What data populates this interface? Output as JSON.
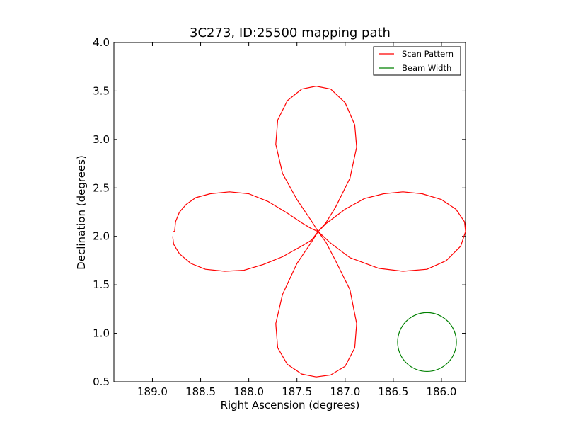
{
  "chart_data": {
    "type": "line",
    "title": "3C273, ID:25500 mapping path",
    "xlabel": "Right Ascension (degrees)",
    "ylabel": "Declination (degrees)",
    "xlim": [
      189.4,
      185.75
    ],
    "ylim": [
      0.5,
      4.0
    ],
    "x_inverted": true,
    "xticks": [
      189.0,
      188.5,
      188.0,
      187.5,
      187.0,
      186.5,
      186.0
    ],
    "xtick_labels": [
      "189.0",
      "188.5",
      "188.0",
      "187.5",
      "187.0",
      "186.5",
      "186.0"
    ],
    "yticks": [
      0.5,
      1.0,
      1.5,
      2.0,
      2.5,
      3.0,
      3.5,
      4.0
    ],
    "ytick_labels": [
      "0.5",
      "1.0",
      "1.5",
      "2.0",
      "2.5",
      "3.0",
      "3.5",
      "4.0"
    ],
    "grid": false,
    "legend_position": "top-right",
    "series": [
      {
        "name": "Scan Pattern",
        "color": "#ff0000",
        "x": [
          188.79,
          188.77,
          188.76,
          188.72,
          188.65,
          188.55,
          188.4,
          188.2,
          188.0,
          187.8,
          187.6,
          187.45,
          187.35,
          187.28,
          187.35,
          187.5,
          187.65,
          187.72,
          187.7,
          187.6,
          187.45,
          187.3,
          187.15,
          187.0,
          186.9,
          186.88,
          186.95,
          187.1,
          187.2,
          187.28,
          187.2,
          187.0,
          186.8,
          186.6,
          186.4,
          186.2,
          186.0,
          185.85,
          185.76,
          185.75,
          185.8,
          185.95,
          186.15,
          186.4,
          186.65,
          186.95,
          187.15,
          187.28,
          187.35,
          187.5,
          187.65,
          187.72,
          187.7,
          187.6,
          187.45,
          187.3,
          187.15,
          187.0,
          186.9,
          186.88,
          186.95,
          187.1,
          187.2,
          187.28,
          187.35,
          187.45,
          187.65,
          187.85,
          188.05,
          188.25,
          188.45,
          188.6,
          188.72,
          188.78,
          188.79
        ],
        "y": [
          2.05,
          2.05,
          2.15,
          2.25,
          2.33,
          2.4,
          2.44,
          2.46,
          2.44,
          2.36,
          2.24,
          2.14,
          2.08,
          2.05,
          2.16,
          2.38,
          2.65,
          2.95,
          3.2,
          3.4,
          3.52,
          3.55,
          3.52,
          3.38,
          3.15,
          2.92,
          2.6,
          2.3,
          2.14,
          2.05,
          2.13,
          2.28,
          2.39,
          2.44,
          2.46,
          2.44,
          2.38,
          2.28,
          2.15,
          2.05,
          1.9,
          1.75,
          1.66,
          1.64,
          1.67,
          1.78,
          1.93,
          2.05,
          1.94,
          1.72,
          1.4,
          1.1,
          0.85,
          0.68,
          0.58,
          0.55,
          0.57,
          0.66,
          0.85,
          1.1,
          1.45,
          1.75,
          1.94,
          2.05,
          1.96,
          1.9,
          1.79,
          1.71,
          1.65,
          1.64,
          1.66,
          1.72,
          1.82,
          1.92,
          2.0
        ]
      },
      {
        "name": "Beam Width",
        "color": "#008000",
        "shape": "circle",
        "center": [
          186.15,
          0.91
        ],
        "radius_deg": 0.305
      }
    ]
  }
}
